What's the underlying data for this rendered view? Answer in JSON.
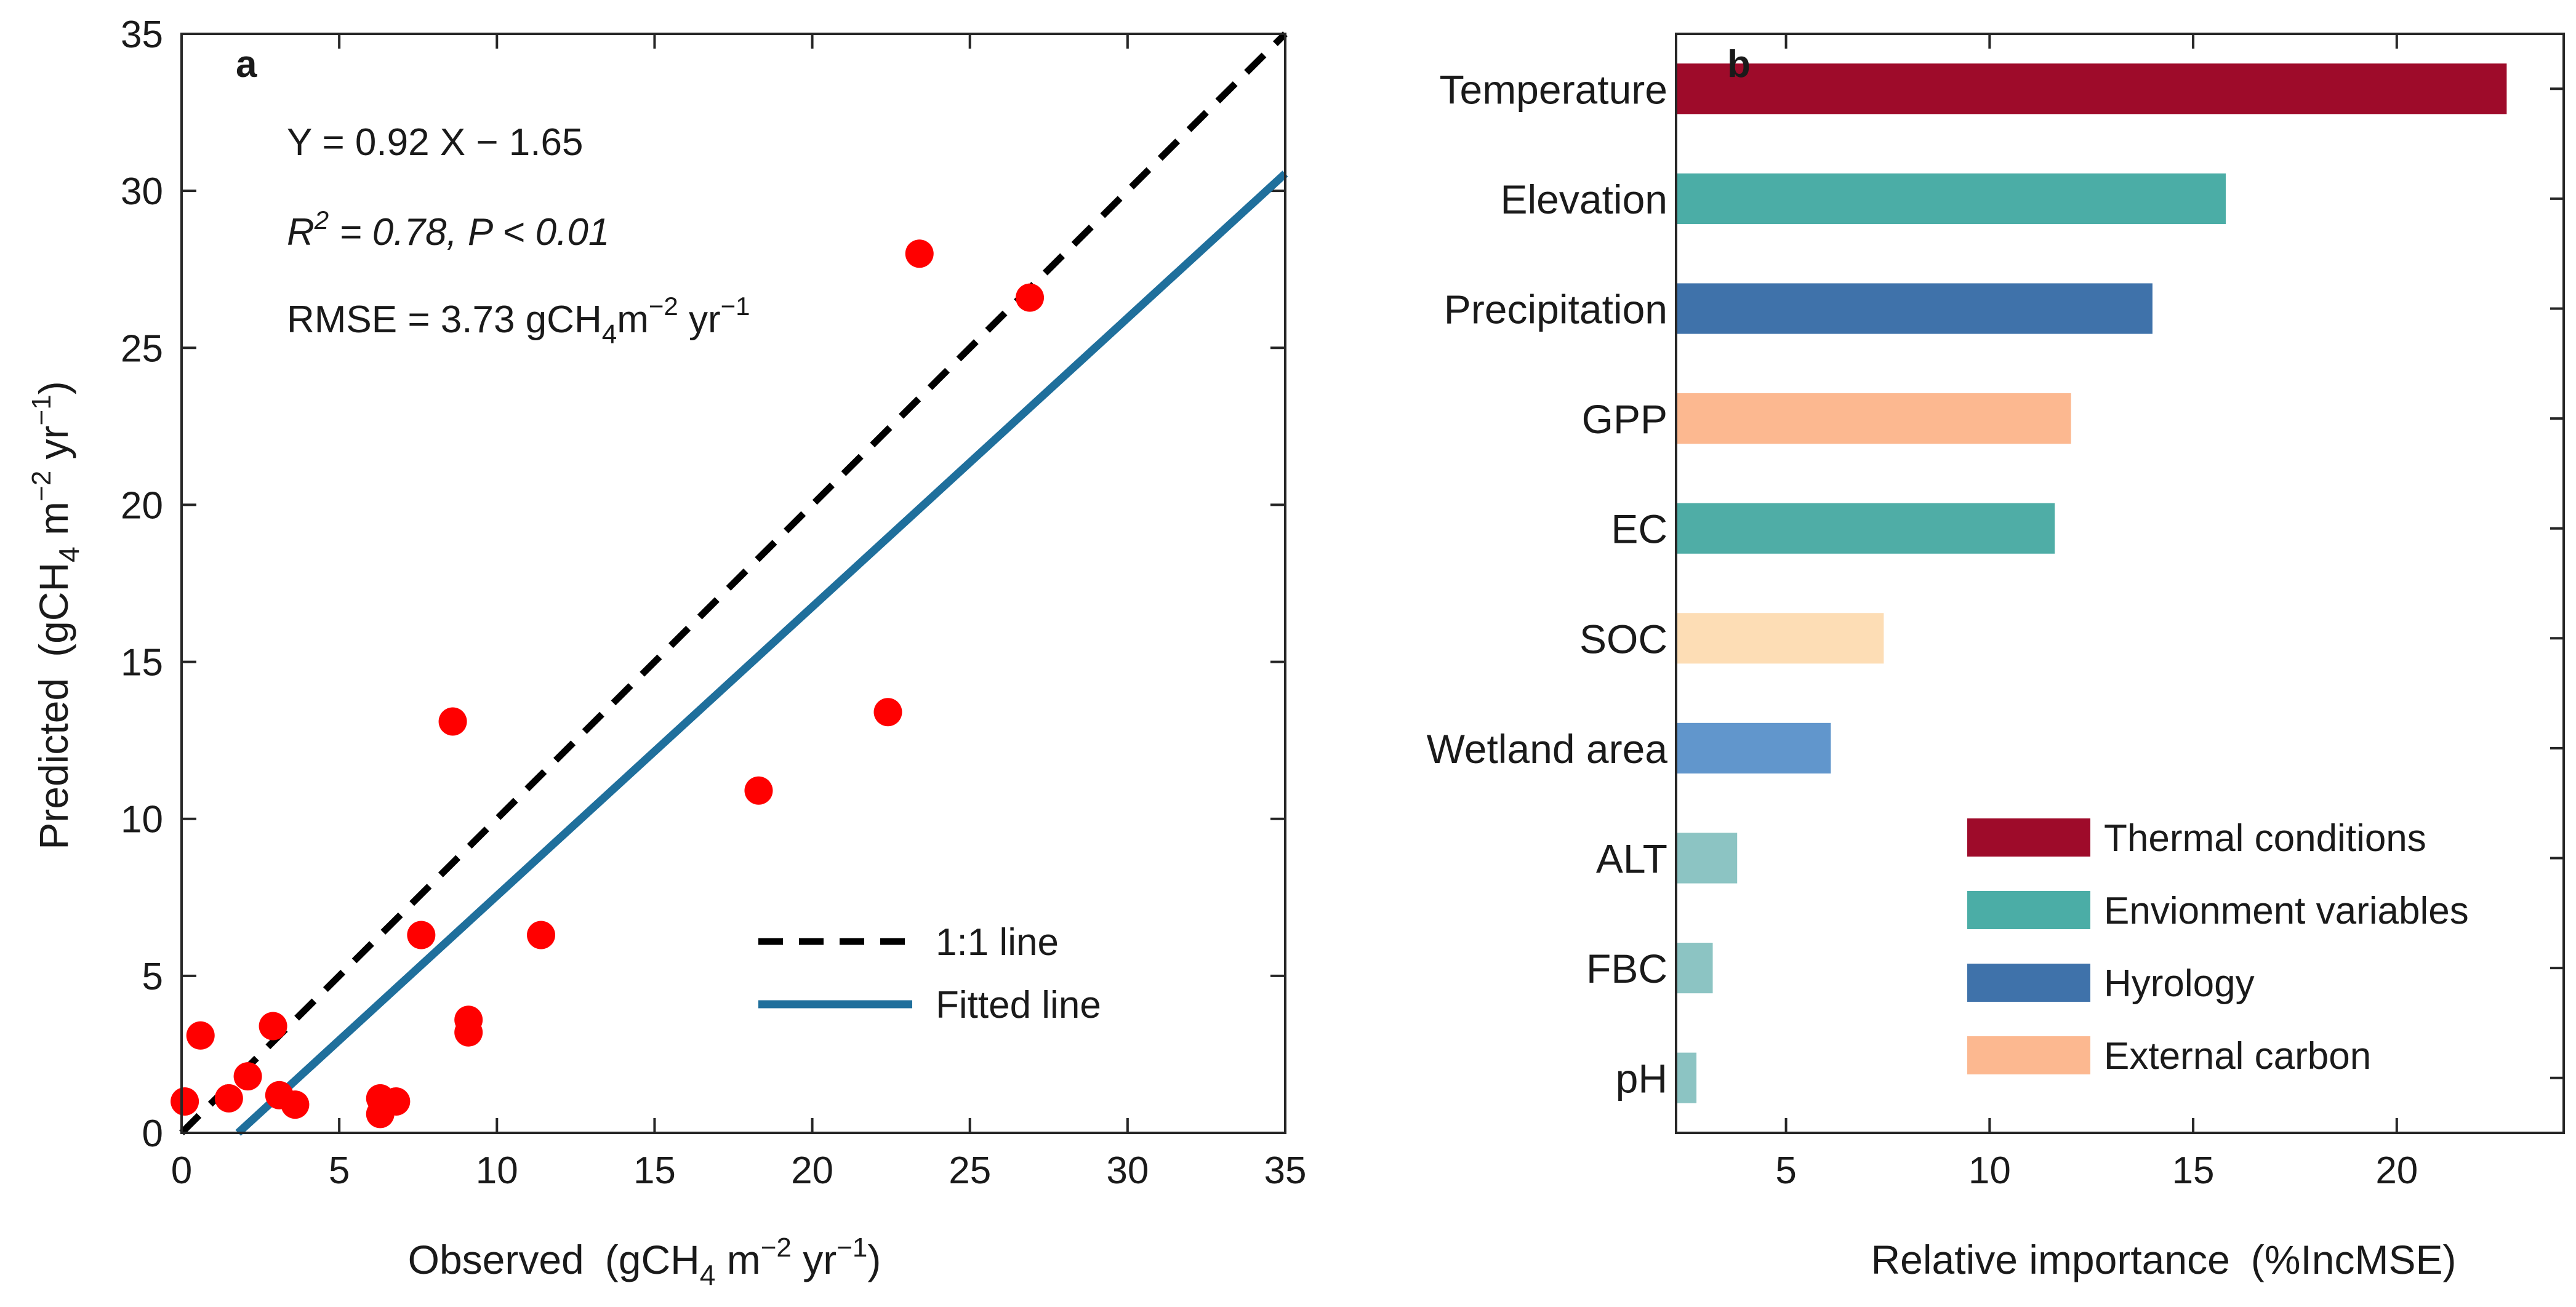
{
  "figure": {
    "panels": [
      "a",
      "b"
    ]
  },
  "chart_data": [
    {
      "type": "scatter",
      "panel_label": "a",
      "xlabel": "Observed (gCH4 m−2 yr−1)",
      "xlabel_parts": {
        "pre": "Observed",
        "paren_open": "(gCH",
        "sub": "4",
        "mid": " m",
        "sup1": "−2",
        "yr": " yr",
        "sup2": "−1",
        "paren_close": ")"
      },
      "ylabel": "Predicted (gCH4 m−2 yr−1)",
      "ylabel_parts": {
        "pre": "Predicted",
        "paren_open": "(gCH",
        "sub": "4",
        "mid": " m",
        "sup1": "−2",
        "yr": " yr",
        "sup2": "−1",
        "paren_close": ")"
      },
      "xlim": [
        0,
        35
      ],
      "ylim": [
        0,
        35
      ],
      "xticks": [
        0,
        5,
        10,
        15,
        20,
        25,
        30,
        35
      ],
      "yticks": [
        0,
        5,
        10,
        15,
        20,
        25,
        30,
        35
      ],
      "points": [
        [
          0.1,
          1.0
        ],
        [
          0.6,
          3.1
        ],
        [
          1.5,
          1.1
        ],
        [
          2.1,
          1.8
        ],
        [
          2.9,
          3.4
        ],
        [
          3.1,
          1.2
        ],
        [
          3.6,
          0.9
        ],
        [
          6.3,
          1.1
        ],
        [
          6.3,
          0.6
        ],
        [
          6.8,
          1.0
        ],
        [
          7.6,
          6.3
        ],
        [
          8.6,
          13.1
        ],
        [
          9.1,
          3.6
        ],
        [
          9.1,
          3.2
        ],
        [
          11.4,
          6.3
        ],
        [
          18.3,
          10.9
        ],
        [
          22.4,
          13.4
        ],
        [
          23.4,
          28.0
        ],
        [
          26.9,
          26.6
        ]
      ],
      "fit": {
        "slope": 0.92,
        "intercept": -1.65
      },
      "annotations": {
        "equation": "Y = 0.92 X − 1.65",
        "r2_prefix": "R",
        "r2_sup": "2",
        "r2_rest": " = 0.78, P < 0.01",
        "rmse_prefix": "RMSE = 3.73 gCH",
        "rmse_sub": "4",
        "rmse_mid": "m",
        "rmse_sup1": "−2",
        "rmse_yr": " yr",
        "rmse_sup2": "−1"
      },
      "legend": [
        {
          "label": "1:1 line",
          "style": "dashed",
          "color": "#000000"
        },
        {
          "label": "Fitted line",
          "style": "solid",
          "color": "#1f6f9c"
        }
      ],
      "legend_position": "bottom-right",
      "colors": {
        "points": "#ff0000",
        "one_to_one": "#000000",
        "fit": "#1f6f9c"
      }
    },
    {
      "type": "bar",
      "orientation": "horizontal",
      "panel_label": "b",
      "xlabel": "Relative importance (%IncMSE)",
      "xlabel_parts": {
        "pre": "Relative importance",
        "paren": "(%IncMSE)"
      },
      "xlim": [
        2.3,
        24.1
      ],
      "xticks": [
        5,
        10,
        15,
        20
      ],
      "categories": [
        "Temperature",
        "Elevation",
        "Precipitation",
        "GPP",
        "EC",
        "SOC",
        "Wetland area",
        "ALT",
        "FBC",
        "pH"
      ],
      "values": [
        22.7,
        15.8,
        14.0,
        12.0,
        11.6,
        7.4,
        6.1,
        3.8,
        3.2,
        2.8
      ],
      "bar_colors": [
        "#9e0b2a",
        "#4bada6",
        "#3f72aa",
        "#fcb890",
        "#4fada6",
        "#fdddb5",
        "#6196cc",
        "#8cc4c3",
        "#8cc4c3",
        "#8cc4c3"
      ],
      "legend": [
        {
          "label": "Thermal conditions",
          "color": "#9e0b2a"
        },
        {
          "label": "Envionment variables",
          "color": "#4bada6"
        },
        {
          "label": "Hyrology",
          "color": "#3f72aa"
        },
        {
          "label": "External carbon",
          "color": "#fcb890"
        }
      ],
      "legend_position": "bottom-right"
    }
  ]
}
